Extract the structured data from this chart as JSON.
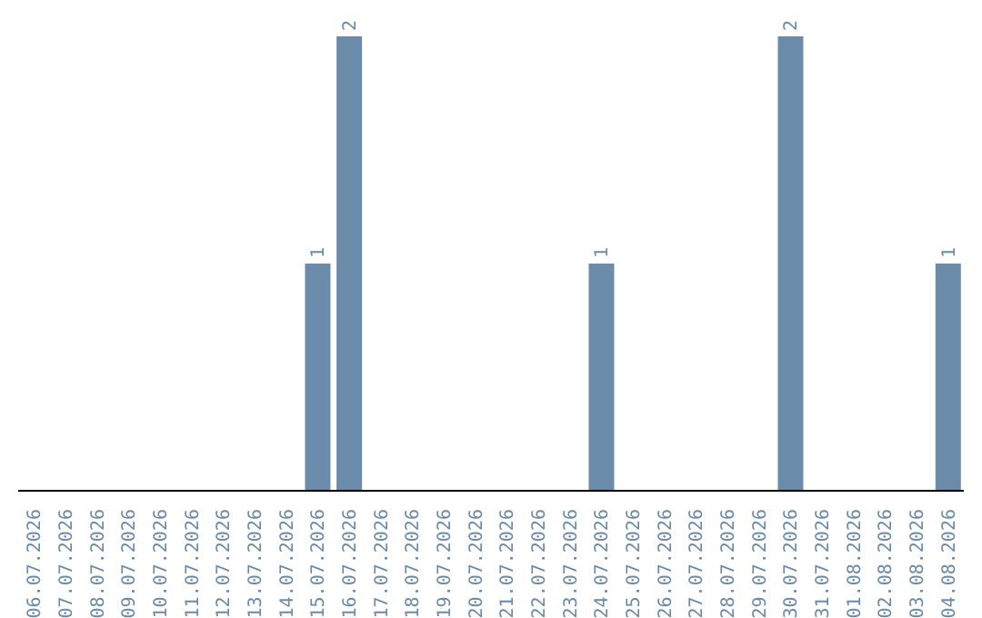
{
  "chart_data": {
    "type": "bar",
    "categories": [
      "06.07.2026",
      "07.07.2026",
      "08.07.2026",
      "09.07.2026",
      "10.07.2026",
      "11.07.2026",
      "12.07.2026",
      "13.07.2026",
      "14.07.2026",
      "15.07.2026",
      "16.07.2026",
      "17.07.2026",
      "18.07.2026",
      "19.07.2026",
      "20.07.2026",
      "21.07.2026",
      "22.07.2026",
      "23.07.2026",
      "24.07.2026",
      "25.07.2026",
      "26.07.2026",
      "27.07.2026",
      "28.07.2026",
      "29.07.2026",
      "30.07.2026",
      "31.07.2026",
      "01.08.2026",
      "02.08.2026",
      "03.08.2026",
      "04.08.2026"
    ],
    "values": [
      0,
      0,
      0,
      0,
      0,
      0,
      0,
      0,
      0,
      1,
      2,
      0,
      0,
      0,
      0,
      0,
      0,
      0,
      1,
      0,
      0,
      0,
      0,
      0,
      2,
      0,
      0,
      0,
      0,
      1
    ],
    "value_labels": [
      null,
      null,
      null,
      null,
      null,
      null,
      null,
      null,
      null,
      "1",
      "2",
      null,
      null,
      null,
      null,
      null,
      null,
      null,
      "1",
      null,
      null,
      null,
      null,
      null,
      "2",
      null,
      null,
      null,
      null,
      "1"
    ],
    "color": "#6a8caa",
    "tick_labels": "x",
    "grid": false,
    "legend": false
  }
}
